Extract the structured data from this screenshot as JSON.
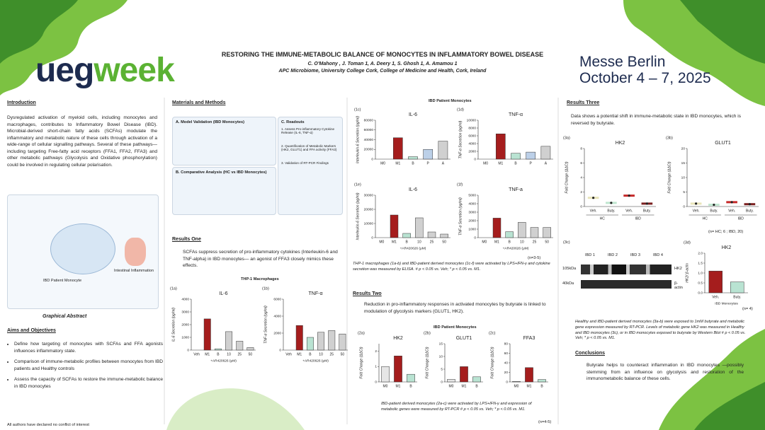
{
  "header": {
    "title": "RESTORING THE IMMUNE-METABOLIC BALANCE OF MONOCYTES IN INFLAMMATORY BOWEL DISEASE",
    "authors": "C. O'Mahony , J. Toman 1, A. Deery 1, S. Ghosh 1, A. Amamou 1",
    "affiliation": "APC Microbiome, University College Cork, College of Medicine and Health, Cork, Ireland",
    "logo_a": "ueg",
    "logo_b": "week",
    "venue": "Messe Berlin",
    "dates": "October 4 – 7, 2025"
  },
  "intro": {
    "heading": "Introduction",
    "body": "Dysregulated activation of myeloid cells, including monocytes and macrophages, contributes to Inflammatory Bowel Disease (IBD). Microbial-derived short-chain fatty acids (SCFAs) modulate the inflammatory and metabolic nature of these cells through activation of a wide-range of cellular signalling pathways. Several of these pathways—including targeting Free-fatty acid receptors (FFA1, FFA2, FFA3) and other metabolic pathways (Glycolysis and Oxidative phosphorylation) could be involved in regulating cellular polarisation.",
    "figure_caption": "Graphical Abstract",
    "figure_labels": [
      "IBD Patient Monocyte",
      "Intestinal Inflammation"
    ]
  },
  "aims": {
    "heading": "Aims and Objectives",
    "items": [
      "Define how targeting of monocytes with SCFAs and FFA agonists influences inflammatory state.",
      "Comparison of immune-metabolic profiles between monocytes from IBD patients and Healthy controls",
      "Assess the capacity of SCFAs to restore the immune-metabolic balance in IBD monocytes"
    ]
  },
  "footer": "All authors have declared no conflict of interest",
  "methods": {
    "heading": "Materials and Methods",
    "panel_a": "A. Model Validation (IBD Monocytes)",
    "panel_b": "B. Comparative Analysis (HC vs IBD Monocytes)",
    "panel_c": "C. Readouts",
    "readouts": [
      "1. Assess Pro-inflammatory Cytokine Release (IL-6, TNF-α)",
      "2. Quantification of Metabolic Markers (HK2, GLUT1) and FFA activity (FFA3)",
      "3. Validation of RT-PCR Findings"
    ]
  },
  "results1": {
    "heading": "Results One",
    "body": "SCFAs suppress secretion of pro-inflammatory cytokines (Interleukin-6 and TNF-alpha) in IBD monocytes— an agonist of FFA3 closely mimics these effects.",
    "group_a": "THP-1 Macrophages",
    "group_b": "IBD Patient Monocytes",
    "caption": "THP-1 macrophages (1a-b) and IBD-patient derived monocytes (1c-f) were activated by LPS+IFN-γ and cytokine secretion was measured by ELISA. # p < 0.05 vs. Veh; * p < 0.05 vs. M1.",
    "n": "(n=3-5)"
  },
  "results2": {
    "heading": "Results Two",
    "body": "Reduction in pro-inflammatory responses in activated monocytes by butyrate is linked to modulation of glycolysis markers (GLUT1, HK2).",
    "group": "IBD Patient Monocytes",
    "caption": "IBD-patient derived monocytes (2a-c) were activated by LPS+IFN-γ and expression of metabolic genes were measured by RT-PCR # p < 0.05 vs. Veh; * p < 0.05 vs. M1.",
    "n": "(n=4-5)"
  },
  "results3": {
    "heading": "Results Three",
    "body": "Data shows a potential shift in immune-metabolic state in IBD monocytes, which is reversed by butyrate.",
    "n_violin": "(n= HC; 6 ; IBD, 20)",
    "blot_panel": "(3c)",
    "blot_lanes": [
      "IBD 1",
      "IBD 2",
      "IBD 3",
      "IBD 4"
    ],
    "blot_rows": [
      "HK2",
      "β-actin"
    ],
    "blot_sizes": [
      "105kDa",
      "40kDa"
    ],
    "caption": "Healthy and IBD-patient derived monocytes (3a-b) were exposed to 1mM butyrate and metabolic gene expression measured by RT-PCR. Levels of metabolic gene HK2 was measured in Healthy and IBD monocytes (3c), or in IBD monocytes exposed to butyrate by Western Blot # p < 0.05 vs. Veh; * p < 0.05 vs. M1.",
    "n": "(n= 4)"
  },
  "conclusions": {
    "heading": "Conclusions",
    "body": "Butyrate helps to counteract inflammation in IBD monocytes —possibly stemming from an influence on glycolysis and restoration of the immunometabolic balance of these cells."
  },
  "charts": [
    {
      "type": "bar",
      "panel": "(1a)",
      "title": "IL-6",
      "ylabel": "IL-6 Secretion (pg/ml)",
      "xlabel": "+AR420626 (μM)",
      "categories": [
        "Veh",
        "M1",
        "B",
        "10",
        "25",
        "50"
      ],
      "values": [
        0,
        2450,
        100,
        1450,
        700,
        200
      ],
      "colors": [
        "#e6e6e6",
        "#a51d1d",
        "#b9e3d2",
        "#d0d0d0",
        "#d0d0d0",
        "#d0d0d0"
      ],
      "ylim": [
        0,
        4000
      ],
      "yticks": [
        0,
        1000,
        2000,
        3000,
        4000
      ]
    },
    {
      "type": "bar",
      "panel": "(1b)",
      "title": "TNF-α",
      "ylabel": "TNF-α Secretion (pg/ml)",
      "xlabel": "+AR420626 (μM)",
      "categories": [
        "Veh",
        "M1",
        "B",
        "10",
        "25",
        "50"
      ],
      "values": [
        0,
        2900,
        1500,
        2100,
        2300,
        1900
      ],
      "colors": [
        "#e6e6e6",
        "#a51d1d",
        "#b9e3d2",
        "#d0d0d0",
        "#d0d0d0",
        "#d0d0d0"
      ],
      "ylim": [
        0,
        6000
      ],
      "yticks": [
        0,
        2000,
        4000,
        6000
      ]
    },
    {
      "type": "bar",
      "panel": "(1c)",
      "title": "IL-6",
      "ylabel": "Interleukin-6 Secretion (pg/ml)",
      "categories": [
        "M0",
        "M1",
        "B",
        "P",
        "A"
      ],
      "values": [
        0,
        44000,
        5000,
        20000,
        37000
      ],
      "colors": [
        "#e6e6e6",
        "#a51d1d",
        "#b9e3d2",
        "#bcd0e8",
        "#d0d0d0"
      ],
      "ylim": [
        0,
        80000
      ],
      "yticks": [
        0,
        20000,
        40000,
        60000,
        80000
      ]
    },
    {
      "type": "bar",
      "panel": "(1d)",
      "title": "TNF-α",
      "ylabel": "TNF-α Secretion (pg/ml)",
      "categories": [
        "M0",
        "M1",
        "B",
        "P",
        "A"
      ],
      "values": [
        0,
        6500,
        1500,
        1800,
        3300
      ],
      "colors": [
        "#e6e6e6",
        "#a51d1d",
        "#b9e3d2",
        "#bcd0e8",
        "#d0d0d0"
      ],
      "ylim": [
        0,
        10000
      ],
      "yticks": [
        0,
        2000,
        4000,
        6000,
        8000,
        10000
      ]
    },
    {
      "type": "bar",
      "panel": "(1e)",
      "title": "IL-6",
      "ylabel": "Interleukin-6 Secretion (pg/ml)",
      "xlabel": "+AR420626 (μM)",
      "categories": [
        "M0",
        "M1",
        "B",
        "10",
        "25",
        "50"
      ],
      "values": [
        0,
        16000,
        3000,
        14000,
        4000,
        2500
      ],
      "colors": [
        "#e6e6e6",
        "#a51d1d",
        "#b9e3d2",
        "#d0d0d0",
        "#d0d0d0",
        "#d0d0d0"
      ],
      "ylim": [
        0,
        30000
      ],
      "yticks": [
        0,
        10000,
        20000,
        30000
      ]
    },
    {
      "type": "bar",
      "panel": "(1f)",
      "title": "TNF-a",
      "ylabel": "TNF-α Secretion (pg/ml)",
      "xlabel": "+AR420626 (μM)",
      "categories": [
        "M0",
        "M1",
        "B",
        "10",
        "25",
        "50"
      ],
      "values": [
        0,
        2300,
        700,
        1800,
        1200,
        1200
      ],
      "colors": [
        "#e6e6e6",
        "#a51d1d",
        "#b9e3d2",
        "#d0d0d0",
        "#d0d0d0",
        "#d0d0d0"
      ],
      "ylim": [
        0,
        5000
      ],
      "yticks": [
        0,
        1000,
        2000,
        3000,
        4000,
        5000
      ]
    },
    {
      "type": "bar",
      "panel": "(2a)",
      "title": "HK2",
      "ylabel": "Fold Change (ΔΔCt)",
      "categories": [
        "M0",
        "M1",
        "B"
      ],
      "values": [
        1,
        1.7,
        0.5
      ],
      "colors": [
        "#e6e6e6",
        "#a51d1d",
        "#b9e3d2"
      ],
      "ylim": [
        0,
        2.5
      ],
      "yticks": [
        0,
        1,
        2
      ]
    },
    {
      "type": "bar",
      "panel": "(2b)",
      "title": "GLUT1",
      "ylabel": "Fold Change (ΔΔCt)",
      "categories": [
        "M0",
        "M1",
        "B"
      ],
      "values": [
        1,
        6,
        2
      ],
      "colors": [
        "#e6e6e6",
        "#a51d1d",
        "#b9e3d2"
      ],
      "ylim": [
        0,
        15
      ],
      "yticks": [
        0,
        5,
        10,
        15
      ]
    },
    {
      "type": "bar",
      "panel": "(2c)",
      "title": "FFA3",
      "ylabel": "Fold Change (ΔΔCt)",
      "categories": [
        "M0",
        "M1",
        "B"
      ],
      "values": [
        1,
        30,
        5
      ],
      "colors": [
        "#e6e6e6",
        "#a51d1d",
        "#b9e3d2"
      ],
      "ylim": [
        0,
        80
      ],
      "yticks": [
        0,
        20,
        40,
        60,
        80
      ]
    },
    {
      "type": "violin",
      "panel": "(3a)",
      "title": "HK2",
      "ylabel": "Fold Change (ΔΔCt)",
      "categories": [
        "Veh.",
        "Buty.",
        "Veh.",
        "Buty."
      ],
      "groups": [
        "HC",
        "IBD"
      ],
      "values": [
        1.2,
        0.5,
        1.5,
        0.4
      ],
      "colors": [
        "#e8e4b8",
        "#bfe6cf",
        "#c62828",
        "#7a1f1f"
      ],
      "ylim": [
        0,
        8
      ],
      "yticks": [
        0,
        2,
        4,
        6,
        8
      ]
    },
    {
      "type": "violin",
      "panel": "(3b)",
      "title": "GLUT1",
      "ylabel": "Fold Change (ΔΔCt)",
      "categories": [
        "Veh.",
        "Buty.",
        "Veh.",
        "Buty."
      ],
      "groups": [
        "HC",
        "IBD"
      ],
      "values": [
        1.0,
        0.6,
        1.5,
        0.8
      ],
      "colors": [
        "#e8e4b8",
        "#bfe6cf",
        "#c62828",
        "#7a1f1f"
      ],
      "ylim": [
        0,
        20
      ],
      "yticks": [
        0,
        5,
        10,
        15,
        20
      ]
    },
    {
      "type": "bar",
      "panel": "(3d)",
      "title": "HK2",
      "ylabel": "HK2/ β-actin",
      "xlabel": "IBD Monocytes",
      "categories": [
        "Veh.",
        "Buty."
      ],
      "values": [
        1.1,
        0.55
      ],
      "colors": [
        "#a51d1d",
        "#b9e3d2"
      ],
      "ylim": [
        0,
        2
      ],
      "yticks": [
        {
          "value": 0,
          "label": "0.0"
        },
        {
          "value": 0.5,
          "label": "0.5"
        },
        {
          "value": 1,
          "label": "1.0"
        },
        {
          "value": 1.5,
          "label": "1.5"
        },
        {
          "value": 2,
          "label": "2.0"
        }
      ]
    }
  ]
}
